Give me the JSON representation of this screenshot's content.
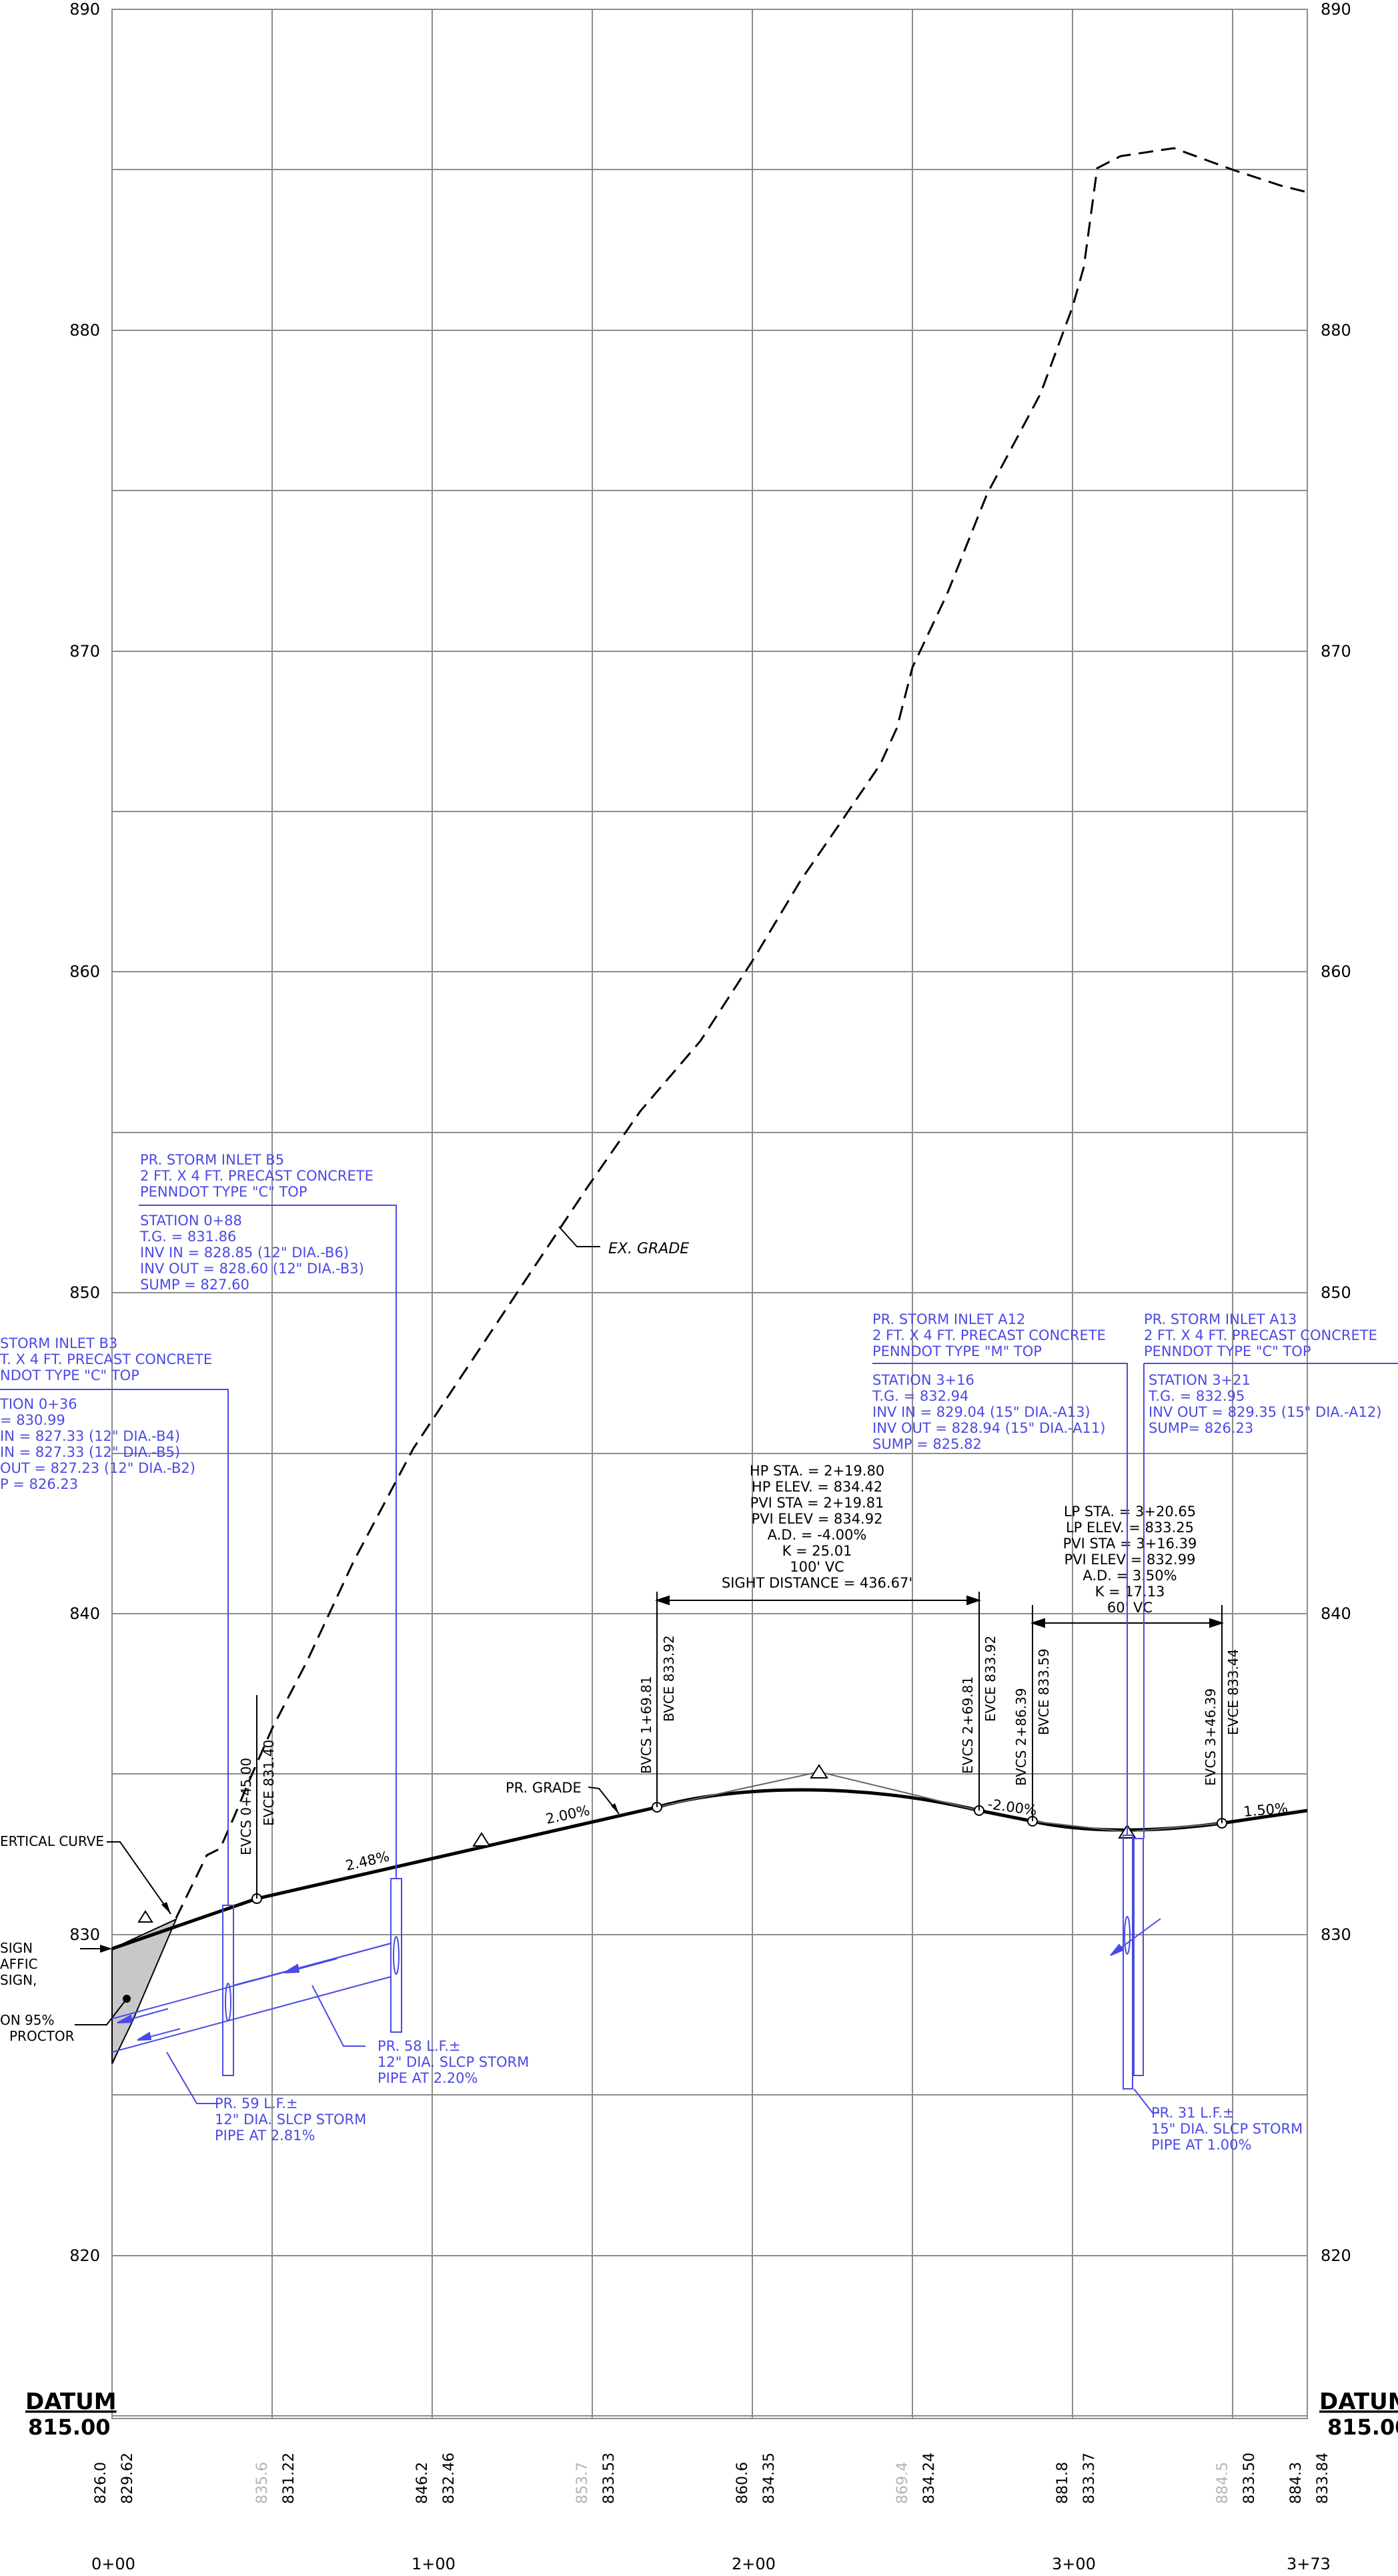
{
  "elevation_labels": [
    "890",
    "880",
    "870",
    "860",
    "850",
    "840",
    "830",
    "820"
  ],
  "station_labels": [
    "0+00",
    "1+00",
    "2+00",
    "3+00",
    "3+73"
  ],
  "datum": {
    "title": "DATUM",
    "value": "815.00"
  },
  "bottom_values": [
    {
      "text": "826.0",
      "grey": false
    },
    {
      "text": "829.62",
      "grey": false
    },
    {
      "text": "835.6",
      "grey": true
    },
    {
      "text": "831.22",
      "grey": false
    },
    {
      "text": "846.2",
      "grey": false
    },
    {
      "text": "832.46",
      "grey": false
    },
    {
      "text": "853.7",
      "grey": true
    },
    {
      "text": "833.53",
      "grey": false
    },
    {
      "text": "860.6",
      "grey": false
    },
    {
      "text": "834.35",
      "grey": false
    },
    {
      "text": "869.4",
      "grey": true
    },
    {
      "text": "834.24",
      "grey": false
    },
    {
      "text": "881.8",
      "grey": false
    },
    {
      "text": "833.37",
      "grey": false
    },
    {
      "text": "884.5",
      "grey": true
    },
    {
      "text": "833.50",
      "grey": false
    },
    {
      "text": "884.3",
      "grey": false
    },
    {
      "text": "833.84",
      "grey": false
    }
  ],
  "profile": {
    "existing_grade_label": "EX. GRADE",
    "proposed_grade_label": "PR. GRADE",
    "slopes": [
      "2.48%",
      "2.00%",
      "-2.00%",
      "1.50%"
    ],
    "vertical_curve_label": "ERTICAL CURVE",
    "left_notes": [
      "SIGN",
      "AFFIC",
      "SIGN,",
      "ON 95%",
      "PROCTOR"
    ],
    "vc_points": [
      {
        "station": "EVCS 0+45.00",
        "elev": "EVCE 831.40"
      },
      {
        "station": "BVCS 1+69.81",
        "elev": "BVCE 833.92"
      },
      {
        "station": "EVCS 2+69.81",
        "elev": "EVCE 833.92"
      },
      {
        "station": "BVCS 2+86.39",
        "elev": "BVCE 833.59"
      },
      {
        "station": "EVCS 3+46.39",
        "elev": "EVCE 833.44"
      }
    ],
    "hp_block": [
      "HP STA. = 2+19.80",
      "HP ELEV. = 834.42",
      "PVI STA = 2+19.81",
      "PVI ELEV = 834.92",
      "A.D. = -4.00%",
      "K = 25.01",
      "100' VC",
      "SIGHT DISTANCE = 436.67'"
    ],
    "lp_block": [
      "LP STA. = 3+20.65",
      "LP ELEV. = 833.25",
      "PVI STA = 3+16.39",
      "PVI ELEV = 832.99",
      "A.D. = 3.50%",
      "K = 17.13",
      "60' VC"
    ]
  },
  "storm": {
    "b5": {
      "header": [
        "PR. STORM INLET B5",
        "2 FT. X 4 FT. PRECAST CONCRETE",
        "PENNDOT TYPE \"C\" TOP"
      ],
      "details": [
        "STATION 0+88",
        "T.G. = 831.86",
        "INV IN = 828.85 (12\" DIA.-B6)",
        "INV OUT = 828.60 (12\" DIA.-B3)",
        "SUMP = 827.60"
      ]
    },
    "b3": {
      "header": [
        "STORM INLET B3",
        "T. X 4 FT. PRECAST CONCRETE",
        "NDOT TYPE \"C\" TOP"
      ],
      "details": [
        "TION 0+36",
        "= 830.99",
        "IN = 827.33 (12\" DIA.-B4)",
        "IN = 827.33 (12\" DIA.-B5)",
        "OUT = 827.23 (12\" DIA.-B2)",
        "P = 826.23"
      ]
    },
    "a12": {
      "header": [
        "PR. STORM INLET A12",
        "2 FT. X 4 FT. PRECAST CONCRETE",
        "PENNDOT TYPE \"M\" TOP"
      ],
      "details": [
        "STATION 3+16",
        "T.G. = 832.94",
        "INV IN = 829.04 (15\" DIA.-A13)",
        "INV OUT = 828.94 (15\" DIA.-A11)",
        "SUMP = 825.82"
      ]
    },
    "a13": {
      "header": [
        "PR. STORM INLET A13",
        "2 FT. X 4 FT. PRECAST CONCRETE",
        "PENNDOT TYPE \"C\" TOP"
      ],
      "details": [
        "STATION 3+21",
        "T.G. = 832.95",
        "INV OUT = 829.35 (15\" DIA.-A12)",
        "SUMP= 826.23"
      ]
    },
    "pipe58": [
      "PR. 58 L.F.±",
      "12\" DIA. SLCP STORM",
      "PIPE AT 2.20%"
    ],
    "pipe59": [
      "PR. 59 L.F.±",
      "12\" DIA. SLCP STORM",
      "PIPE AT 2.81%"
    ],
    "pipe31": [
      "PR. 31 L.F.±",
      "15\" DIA. SLCP STORM",
      "PIPE AT 1.00%"
    ]
  },
  "colors": {
    "grid": "#8c8c8c",
    "storm": "#4a4ae6",
    "line": "#000000",
    "shade": "#c8c8c8",
    "faint": "#b4b4b4"
  }
}
